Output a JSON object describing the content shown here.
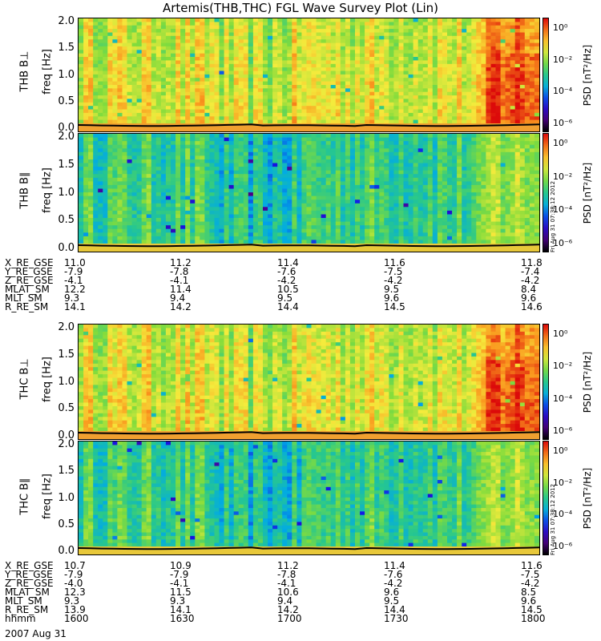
{
  "title": "Artemis(THB,THC) FGL Wave Survey Plot (Lin)",
  "date_label": "2007 Aug 31",
  "colors": {
    "low": "#2a00a8",
    "mid": "#26d0a0",
    "high": "#f5e83a",
    "peak": "#e02000"
  },
  "colorbar": {
    "label": "PSD [nT²/Hz]",
    "ticks": [
      "10⁰",
      "10⁻²",
      "10⁻⁴",
      "10⁻⁶"
    ]
  },
  "stamp": "Fri Aug 31 07:38:12 2012",
  "panels": [
    {
      "label": "THB B⊥",
      "axis": "freq [Hz]",
      "yticks": [
        "2.0",
        "1.5",
        "1.0",
        "0.5",
        "0.0"
      ],
      "style": "perp"
    },
    {
      "label": "THB B∥",
      "axis": "freq [Hz]",
      "yticks": [
        "2.0",
        "1.5",
        "1.0",
        "0.5",
        "0.0"
      ],
      "style": "par"
    },
    {
      "label": "THC B⊥",
      "axis": "freq [Hz]",
      "yticks": [
        "2.0",
        "1.5",
        "1.0",
        "0.5",
        "0.0"
      ],
      "style": "perp"
    },
    {
      "label": "THC B∥",
      "axis": "freq [Hz]",
      "yticks": [
        "2.0",
        "1.5",
        "1.0",
        "0.5",
        "0.0"
      ],
      "style": "par"
    }
  ],
  "ephem_thb": {
    "rows": [
      {
        "name": "X_RE_GSE",
        "values": [
          "11.0",
          "11.2",
          "11.4",
          "11.6",
          "11.8"
        ]
      },
      {
        "name": "Y_RE_GSE",
        "values": [
          "-7.9",
          "-7.8",
          "-7.6",
          "-7.5",
          "-7.4"
        ]
      },
      {
        "name": "Z_RE_GSE",
        "values": [
          "-4.1",
          "-4.1",
          "-4.2",
          "-4.2",
          "-4.2"
        ]
      },
      {
        "name": "MLAT_SM",
        "values": [
          "12.2",
          "11.4",
          "10.5",
          "9.5",
          "8.4"
        ]
      },
      {
        "name": "MLT_SM",
        "values": [
          "9.3",
          "9.4",
          "9.5",
          "9.6",
          "9.6"
        ]
      },
      {
        "name": "R_RE_SM",
        "values": [
          "14.1",
          "14.2",
          "14.4",
          "14.5",
          "14.6"
        ]
      }
    ]
  },
  "ephem_thc": {
    "rows": [
      {
        "name": "X_RE_GSE",
        "values": [
          "10.7",
          "10.9",
          "11.2",
          "11.4",
          "11.6"
        ]
      },
      {
        "name": "Y_RE_GSE",
        "values": [
          "-7.9",
          "-7.9",
          "-7.8",
          "-7.6",
          "-7.5"
        ]
      },
      {
        "name": "Z_RE_GSE",
        "values": [
          "-4.0",
          "-4.1",
          "-4.1",
          "-4.2",
          "-4.2"
        ]
      },
      {
        "name": "MLAT_SM",
        "values": [
          "12.3",
          "11.5",
          "10.6",
          "9.6",
          "8.5"
        ]
      },
      {
        "name": "MLT_SM",
        "values": [
          "9.3",
          "9.3",
          "9.4",
          "9.5",
          "9.6"
        ]
      },
      {
        "name": "R_RE_SM",
        "values": [
          "13.9",
          "14.1",
          "14.2",
          "14.4",
          "14.5"
        ]
      },
      {
        "name": "hhmm",
        "values": [
          "1600",
          "1630",
          "1700",
          "1730",
          "1800"
        ]
      }
    ]
  },
  "chart_data": {
    "type": "heatmap",
    "title": "Artemis(THB,THC) FGL Wave Survey Plot (Lin)",
    "x_axis": {
      "label": "hhmm",
      "ticks": [
        "1600",
        "1630",
        "1700",
        "1730",
        "1800"
      ]
    },
    "y_axis": {
      "label": "freq [Hz]",
      "range": [
        0.0,
        2.0
      ],
      "ticks": [
        0.0,
        0.5,
        1.0,
        1.5,
        2.0
      ]
    },
    "color_scale": {
      "label": "PSD [nT²/Hz]",
      "scale": "log",
      "range": [
        1e-06,
        10
      ],
      "ticks": [
        "10⁰",
        "10⁻²",
        "10⁻⁴",
        "10⁻⁶"
      ]
    },
    "panels": [
      "THB B⊥",
      "THB B∥",
      "THC B⊥",
      "THC B∥"
    ]
  }
}
